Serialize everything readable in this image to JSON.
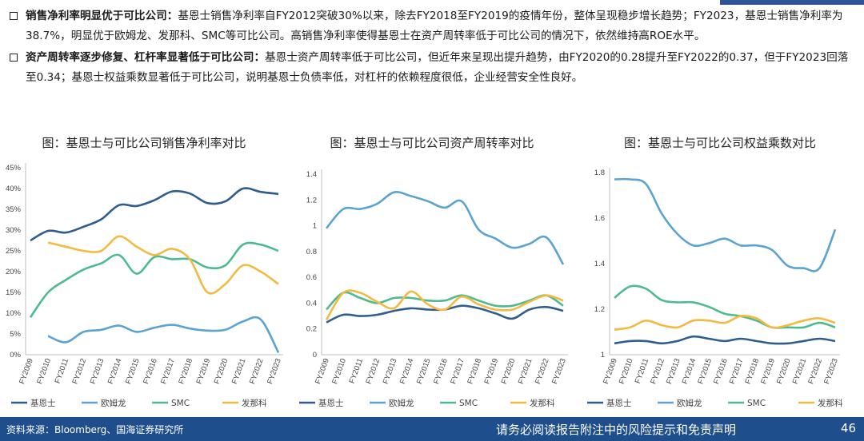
{
  "bullets": [
    {
      "head": "销售净利率明显优于可比公司：",
      "body": "基恩士销售净利率自FY2012突破30%以来，除去FY2018至FY2019的疫情年份，整体呈现稳步增长趋势；FY2023，基恩士销售净利率为38.7%，明显优于欧姆龙、发那科、SMC等可比公司。高销售净利率使得基恩士在资产周转率低于可比公司的情况下，依然维持高ROE水平。"
    },
    {
      "head": "资产周转率逐步修复、杠杆率显著低于可比公司：",
      "body": "基恩士资产周转率低于可比公司，但近年来呈现出提升趋势，由FY2020的0.28提升至FY2022的0.37，但于FY2023回落至0.34；基恩士权益乘数显著低于可比公司，说明基恩士负债率低，对杠杆的依赖程度很低，企业经营安全性良好。"
    }
  ],
  "footer": {
    "source": "资料来源：Bloomberg、国海证券研究所",
    "disclaimer": "请务必阅读报告附注中的风险提示和免责声明",
    "page": "46"
  },
  "chart_data": [
    {
      "type": "line",
      "title": "图：基恩士与可比公司销售净利率对比",
      "x": [
        "FY2009",
        "FY2010",
        "FY2011",
        "FY2012",
        "FY2013",
        "FY2014",
        "FY2015",
        "FY2016",
        "FY2017",
        "FY2018",
        "FY2019",
        "FY2020",
        "FY2021",
        "FY2022",
        "FY2023"
      ],
      "ylim": [
        0,
        45
      ],
      "yticks": [
        "0%",
        "5%",
        "10%",
        "15%",
        "20%",
        "25%",
        "30%",
        "35%",
        "40%",
        "45%"
      ],
      "series": [
        {
          "name": "基恩士",
          "color": "#2e5d8e",
          "values": [
            27.5,
            29.8,
            29.4,
            30.8,
            32.6,
            36.0,
            35.8,
            37.2,
            39.3,
            38.8,
            36.5,
            36.9,
            40.0,
            39.2,
            38.7
          ]
        },
        {
          "name": "欧姆龙",
          "color": "#5ba3d0",
          "values": [
            null,
            4.5,
            3.0,
            5.5,
            6.0,
            7.0,
            5.5,
            6.5,
            7.2,
            6.3,
            5.8,
            6.0,
            8.0,
            8.5,
            0.5
          ]
        },
        {
          "name": "SMC",
          "color": "#4dbb8f",
          "values": [
            9.0,
            15.0,
            18.0,
            20.5,
            22.0,
            24.0,
            19.5,
            23.5,
            23.0,
            23.0,
            21.0,
            21.5,
            26.5,
            26.5,
            25.0
          ]
        },
        {
          "name": "发那科",
          "color": "#f4b942",
          "values": [
            null,
            27.0,
            26.0,
            25.0,
            25.0,
            28.5,
            26.0,
            24.0,
            25.5,
            23.0,
            15.0,
            17.0,
            21.5,
            20.0,
            17.0
          ]
        }
      ]
    },
    {
      "type": "line",
      "title": "图：基恩士与可比公司资产周转率对比",
      "x": [
        "FY2009",
        "FY2010",
        "FY2011",
        "FY2012",
        "FY2013",
        "FY2014",
        "FY2015",
        "FY2016",
        "FY2017",
        "FY2018",
        "FY2019",
        "FY2020",
        "FY2021",
        "FY2022",
        "FY2023"
      ],
      "ylim": [
        0,
        1.4
      ],
      "yticks": [
        "0",
        "0.2",
        "0.4",
        "0.6",
        "0.8",
        "1",
        "1.2",
        "1.4"
      ],
      "series": [
        {
          "name": "基恩士",
          "color": "#2e5d8e",
          "values": [
            0.25,
            0.31,
            0.3,
            0.31,
            0.34,
            0.36,
            0.35,
            0.35,
            0.38,
            0.36,
            0.32,
            0.28,
            0.35,
            0.37,
            0.34
          ]
        },
        {
          "name": "欧姆龙",
          "color": "#5ba3d0",
          "values": [
            0.98,
            1.13,
            1.13,
            1.17,
            1.26,
            1.23,
            1.19,
            1.14,
            1.19,
            0.97,
            0.9,
            0.83,
            0.86,
            0.91,
            0.7
          ]
        },
        {
          "name": "SMC",
          "color": "#4dbb8f",
          "values": [
            0.35,
            0.48,
            0.44,
            0.4,
            0.44,
            0.44,
            0.42,
            0.42,
            0.46,
            0.42,
            0.38,
            0.38,
            0.42,
            0.46,
            0.38
          ]
        },
        {
          "name": "发那科",
          "color": "#f4b942",
          "values": [
            0.27,
            0.48,
            0.48,
            0.41,
            0.36,
            0.49,
            0.39,
            0.35,
            0.45,
            0.39,
            0.35,
            0.35,
            0.41,
            0.46,
            0.42
          ]
        }
      ]
    },
    {
      "type": "line",
      "title": "图：基恩士与可比公司权益乘数对比",
      "x": [
        "FY2009",
        "FY2010",
        "FY2011",
        "FY2012",
        "FY2013",
        "FY2014",
        "FY2015",
        "FY2016",
        "FY2017",
        "FY2018",
        "FY2019",
        "FY2020",
        "FY2021",
        "FY2022",
        "FY2023"
      ],
      "ylim": [
        1,
        1.8
      ],
      "yticks": [
        "1",
        "1.2",
        "1.4",
        "1.6",
        "1.8"
      ],
      "series": [
        {
          "name": "基恩士",
          "color": "#2e5d8e",
          "values": [
            1.05,
            1.06,
            1.06,
            1.05,
            1.06,
            1.08,
            1.07,
            1.06,
            1.07,
            1.06,
            1.05,
            1.05,
            1.06,
            1.07,
            1.06
          ]
        },
        {
          "name": "欧姆龙",
          "color": "#5ba3d0",
          "values": [
            1.77,
            1.77,
            1.75,
            1.62,
            1.53,
            1.48,
            1.49,
            1.51,
            1.48,
            1.48,
            1.46,
            1.39,
            1.38,
            1.38,
            1.55
          ]
        },
        {
          "name": "SMC",
          "color": "#4dbb8f",
          "values": [
            1.25,
            1.3,
            1.29,
            1.24,
            1.23,
            1.23,
            1.21,
            1.18,
            1.17,
            1.15,
            1.12,
            1.12,
            1.12,
            1.14,
            1.12
          ]
        },
        {
          "name": "发那科",
          "color": "#f4b942",
          "values": [
            1.11,
            1.12,
            1.15,
            1.13,
            1.12,
            1.15,
            1.15,
            1.14,
            1.17,
            1.16,
            1.12,
            1.13,
            1.15,
            1.16,
            1.14
          ]
        }
      ]
    }
  ]
}
